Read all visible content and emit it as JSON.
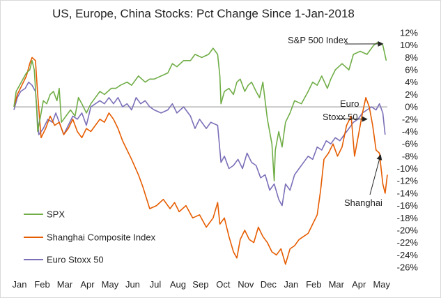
{
  "chart_data": {
    "type": "line",
    "title": "US, Europe, China Stocks: Pct Change Since 1-Jan-2018",
    "x_tick_labels": [
      "Jan",
      "Feb",
      "Mar",
      "Apr",
      "May",
      "Jun",
      "Jul",
      "Aug",
      "Sep",
      "Oct",
      "Nov",
      "Dec",
      "Jan",
      "Feb",
      "Mar",
      "Apr",
      "May"
    ],
    "y_tick_labels": [
      "12%",
      "10%",
      "8%",
      "6%",
      "4%",
      "2%",
      "0%",
      "-2%",
      "-4%",
      "-6%",
      "-8%",
      "-10%",
      "-12%",
      "-14%",
      "-16%",
      "-18%",
      "-20%",
      "-22%",
      "-24%",
      "-26%"
    ],
    "ylim": [
      -26,
      12
    ],
    "y_axis_position": "right",
    "grid": false,
    "zero_line": true,
    "legend_position": "bottom-left",
    "annotations": [
      {
        "text": "S&P 500 Index",
        "target": {
          "x": 16.3,
          "y": 10.2
        }
      },
      {
        "text": "Euro",
        "target": {
          "x": 15.6,
          "y": -2.0
        }
      },
      {
        "text": "Stoxx 50",
        "target": null
      },
      {
        "text": "Shanghai",
        "target": {
          "x": 16.2,
          "y": -7.8
        }
      }
    ],
    "series": [
      {
        "name": "SPX",
        "color": "#70ad47",
        "points": [
          [
            0,
            0
          ],
          [
            0.1,
            2.5
          ],
          [
            0.25,
            3.5
          ],
          [
            0.4,
            4.5
          ],
          [
            0.55,
            5.5
          ],
          [
            0.7,
            6.0
          ],
          [
            0.8,
            7.5
          ],
          [
            0.9,
            6.0
          ],
          [
            1.0,
            0.0
          ],
          [
            1.05,
            -4.0
          ],
          [
            1.15,
            -2.0
          ],
          [
            1.3,
            1.0
          ],
          [
            1.45,
            0.5
          ],
          [
            1.6,
            2.0
          ],
          [
            1.75,
            2.5
          ],
          [
            1.9,
            1.0
          ],
          [
            2.0,
            3.0
          ],
          [
            2.1,
            -2.5
          ],
          [
            2.3,
            -1.5
          ],
          [
            2.5,
            -0.5
          ],
          [
            2.7,
            -1.5
          ],
          [
            2.85,
            1.5
          ],
          [
            3.0,
            0.5
          ],
          [
            3.2,
            -1.0
          ],
          [
            3.4,
            0.5
          ],
          [
            3.6,
            1.5
          ],
          [
            3.8,
            2.5
          ],
          [
            4.0,
            2.0
          ],
          [
            4.3,
            3.0
          ],
          [
            4.5,
            3.0
          ],
          [
            4.7,
            3.5
          ],
          [
            5.0,
            4.0
          ],
          [
            5.2,
            3.5
          ],
          [
            5.5,
            5.0
          ],
          [
            5.8,
            4.0
          ],
          [
            6.0,
            4.5
          ],
          [
            6.2,
            4.5
          ],
          [
            6.5,
            5.0
          ],
          [
            6.8,
            5.5
          ],
          [
            7.0,
            7.0
          ],
          [
            7.2,
            6.5
          ],
          [
            7.5,
            7.5
          ],
          [
            7.8,
            7.5
          ],
          [
            8.0,
            8.5
          ],
          [
            8.3,
            8.0
          ],
          [
            8.6,
            8.5
          ],
          [
            8.8,
            9.5
          ],
          [
            9.0,
            8.5
          ],
          [
            9.1,
            5.0
          ],
          [
            9.15,
            0.5
          ],
          [
            9.3,
            2.5
          ],
          [
            9.5,
            3.0
          ],
          [
            9.7,
            2.0
          ],
          [
            9.85,
            4.0
          ],
          [
            10.0,
            4.5
          ],
          [
            10.2,
            2.5
          ],
          [
            10.35,
            3.5
          ],
          [
            10.5,
            4.0
          ],
          [
            10.7,
            2.5
          ],
          [
            10.85,
            1.5
          ],
          [
            11.0,
            4.0
          ],
          [
            11.2,
            -2.0
          ],
          [
            11.4,
            -6.0
          ],
          [
            11.5,
            -12.0
          ],
          [
            11.55,
            -7.0
          ],
          [
            11.7,
            -4.0
          ],
          [
            11.85,
            -6.5
          ],
          [
            12.0,
            -2.5
          ],
          [
            12.2,
            -1.0
          ],
          [
            12.4,
            1.0
          ],
          [
            12.7,
            0.5
          ],
          [
            13.0,
            2.5
          ],
          [
            13.2,
            4.0
          ],
          [
            13.4,
            3.5
          ],
          [
            13.6,
            5.0
          ],
          [
            13.85,
            3.0
          ],
          [
            14.0,
            4.5
          ],
          [
            14.2,
            6.0
          ],
          [
            14.5,
            7.0
          ],
          [
            14.8,
            6.0
          ],
          [
            15.0,
            8.5
          ],
          [
            15.3,
            9.0
          ],
          [
            15.6,
            8.5
          ],
          [
            15.9,
            10.0
          ],
          [
            16.1,
            10.5
          ],
          [
            16.3,
            10.0
          ],
          [
            16.45,
            7.5
          ]
        ]
      },
      {
        "name": "Shanghai Composite Index",
        "color": "#e65c00",
        "points": [
          [
            0,
            0
          ],
          [
            0.15,
            2.0
          ],
          [
            0.35,
            3.5
          ],
          [
            0.55,
            5.0
          ],
          [
            0.7,
            7.0
          ],
          [
            0.8,
            8.0
          ],
          [
            0.95,
            7.5
          ],
          [
            1.05,
            2.0
          ],
          [
            1.2,
            -5.0
          ],
          [
            1.4,
            -3.5
          ],
          [
            1.6,
            -1.5
          ],
          [
            1.8,
            -3.0
          ],
          [
            2.0,
            -2.5
          ],
          [
            2.2,
            -4.5
          ],
          [
            2.4,
            -3.5
          ],
          [
            2.6,
            -2.0
          ],
          [
            2.8,
            -4.0
          ],
          [
            3.0,
            -5.0
          ],
          [
            3.2,
            -3.5
          ],
          [
            3.4,
            -4.0
          ],
          [
            3.6,
            -3.0
          ],
          [
            3.8,
            -2.0
          ],
          [
            4.0,
            -2.5
          ],
          [
            4.2,
            -1.0
          ],
          [
            4.4,
            -2.0
          ],
          [
            4.6,
            -3.5
          ],
          [
            4.8,
            -5.5
          ],
          [
            5.0,
            -7.0
          ],
          [
            5.2,
            -8.5
          ],
          [
            5.5,
            -11.0
          ],
          [
            5.7,
            -13.0
          ],
          [
            6.0,
            -16.5
          ],
          [
            6.3,
            -16.0
          ],
          [
            6.6,
            -15.0
          ],
          [
            6.9,
            -16.5
          ],
          [
            7.1,
            -15.5
          ],
          [
            7.3,
            -17.0
          ],
          [
            7.6,
            -16.0
          ],
          [
            7.9,
            -18.0
          ],
          [
            8.2,
            -17.5
          ],
          [
            8.5,
            -19.5
          ],
          [
            8.8,
            -18.0
          ],
          [
            9.0,
            -15.5
          ],
          [
            9.1,
            -19.0
          ],
          [
            9.3,
            -18.0
          ],
          [
            9.5,
            -21.0
          ],
          [
            9.7,
            -23.5
          ],
          [
            9.85,
            -24.5
          ],
          [
            10.0,
            -21.5
          ],
          [
            10.2,
            -20.0
          ],
          [
            10.4,
            -21.5
          ],
          [
            10.6,
            -22.0
          ],
          [
            10.8,
            -19.5
          ],
          [
            11.0,
            -21.0
          ],
          [
            11.2,
            -22.0
          ],
          [
            11.4,
            -23.5
          ],
          [
            11.6,
            -24.0
          ],
          [
            11.8,
            -23.0
          ],
          [
            12.0,
            -25.5
          ],
          [
            12.2,
            -23.0
          ],
          [
            12.4,
            -22.5
          ],
          [
            12.6,
            -21.5
          ],
          [
            12.8,
            -21.0
          ],
          [
            13.0,
            -20.5
          ],
          [
            13.2,
            -19.0
          ],
          [
            13.4,
            -17.5
          ],
          [
            13.55,
            -13.5
          ],
          [
            13.7,
            -8.5
          ],
          [
            13.9,
            -7.5
          ],
          [
            14.1,
            -6.0
          ],
          [
            14.3,
            -8.0
          ],
          [
            14.5,
            -6.5
          ],
          [
            14.7,
            -3.0
          ],
          [
            14.9,
            -1.5
          ],
          [
            15.05,
            -8.0
          ],
          [
            15.2,
            -5.0
          ],
          [
            15.4,
            -1.0
          ],
          [
            15.55,
            1.5
          ],
          [
            15.7,
            0.0
          ],
          [
            15.85,
            -3.0
          ],
          [
            16.0,
            -7.0
          ],
          [
            16.15,
            -7.5
          ],
          [
            16.3,
            -12.5
          ],
          [
            16.4,
            -14.0
          ],
          [
            16.5,
            -11.0
          ]
        ]
      },
      {
        "name": "Euro Stoxx 50",
        "color": "#7b6fb8",
        "points": [
          [
            0,
            -0.5
          ],
          [
            0.15,
            1.5
          ],
          [
            0.3,
            2.5
          ],
          [
            0.5,
            3.0
          ],
          [
            0.65,
            4.0
          ],
          [
            0.8,
            3.5
          ],
          [
            0.95,
            2.5
          ],
          [
            1.1,
            -4.5
          ],
          [
            1.3,
            -3.5
          ],
          [
            1.5,
            -2.0
          ],
          [
            1.7,
            -2.5
          ],
          [
            1.85,
            -1.0
          ],
          [
            2.0,
            -2.5
          ],
          [
            2.2,
            -4.5
          ],
          [
            2.4,
            -3.0
          ],
          [
            2.6,
            -1.5
          ],
          [
            2.8,
            -2.0
          ],
          [
            3.0,
            -1.0
          ],
          [
            3.2,
            -3.0
          ],
          [
            3.4,
            0.0
          ],
          [
            3.6,
            0.5
          ],
          [
            3.8,
            1.0
          ],
          [
            4.0,
            0.5
          ],
          [
            4.2,
            1.5
          ],
          [
            4.4,
            0.5
          ],
          [
            4.6,
            1.5
          ],
          [
            4.8,
            0.0
          ],
          [
            5.0,
            0.5
          ],
          [
            5.2,
            -0.5
          ],
          [
            5.4,
            1.5
          ],
          [
            5.6,
            0.5
          ],
          [
            5.8,
            1.0
          ],
          [
            6.0,
            0.0
          ],
          [
            6.2,
            -0.5
          ],
          [
            6.5,
            -1.0
          ],
          [
            6.8,
            -0.5
          ],
          [
            7.0,
            0.5
          ],
          [
            7.2,
            -1.0
          ],
          [
            7.5,
            0.0
          ],
          [
            7.8,
            -1.5
          ],
          [
            8.0,
            -3.5
          ],
          [
            8.2,
            -2.0
          ],
          [
            8.5,
            -3.5
          ],
          [
            8.7,
            -2.5
          ],
          [
            9.0,
            -3.0
          ],
          [
            9.15,
            -9.0
          ],
          [
            9.3,
            -8.0
          ],
          [
            9.5,
            -10.0
          ],
          [
            9.7,
            -9.5
          ],
          [
            9.9,
            -8.5
          ],
          [
            10.1,
            -10.0
          ],
          [
            10.3,
            -7.5
          ],
          [
            10.5,
            -9.0
          ],
          [
            10.7,
            -9.5
          ],
          [
            10.9,
            -11.5
          ],
          [
            11.1,
            -11.0
          ],
          [
            11.3,
            -13.5
          ],
          [
            11.5,
            -12.5
          ],
          [
            11.7,
            -15.0
          ],
          [
            11.85,
            -16.0
          ],
          [
            12.0,
            -12.5
          ],
          [
            12.2,
            -13.5
          ],
          [
            12.4,
            -11.0
          ],
          [
            12.6,
            -10.0
          ],
          [
            12.8,
            -9.0
          ],
          [
            13.0,
            -8.0
          ],
          [
            13.2,
            -8.5
          ],
          [
            13.4,
            -6.5
          ],
          [
            13.6,
            -7.0
          ],
          [
            13.8,
            -5.5
          ],
          [
            14.0,
            -6.0
          ],
          [
            14.2,
            -5.0
          ],
          [
            14.4,
            -5.5
          ],
          [
            14.6,
            -4.5
          ],
          [
            14.8,
            -3.5
          ],
          [
            15.0,
            -2.5
          ],
          [
            15.2,
            -2.0
          ],
          [
            15.4,
            -1.0
          ],
          [
            15.6,
            -0.5
          ],
          [
            15.8,
            0.0
          ],
          [
            16.0,
            -0.5
          ],
          [
            16.15,
            0.5
          ],
          [
            16.3,
            -1.0
          ],
          [
            16.4,
            -4.5
          ]
        ]
      }
    ]
  }
}
